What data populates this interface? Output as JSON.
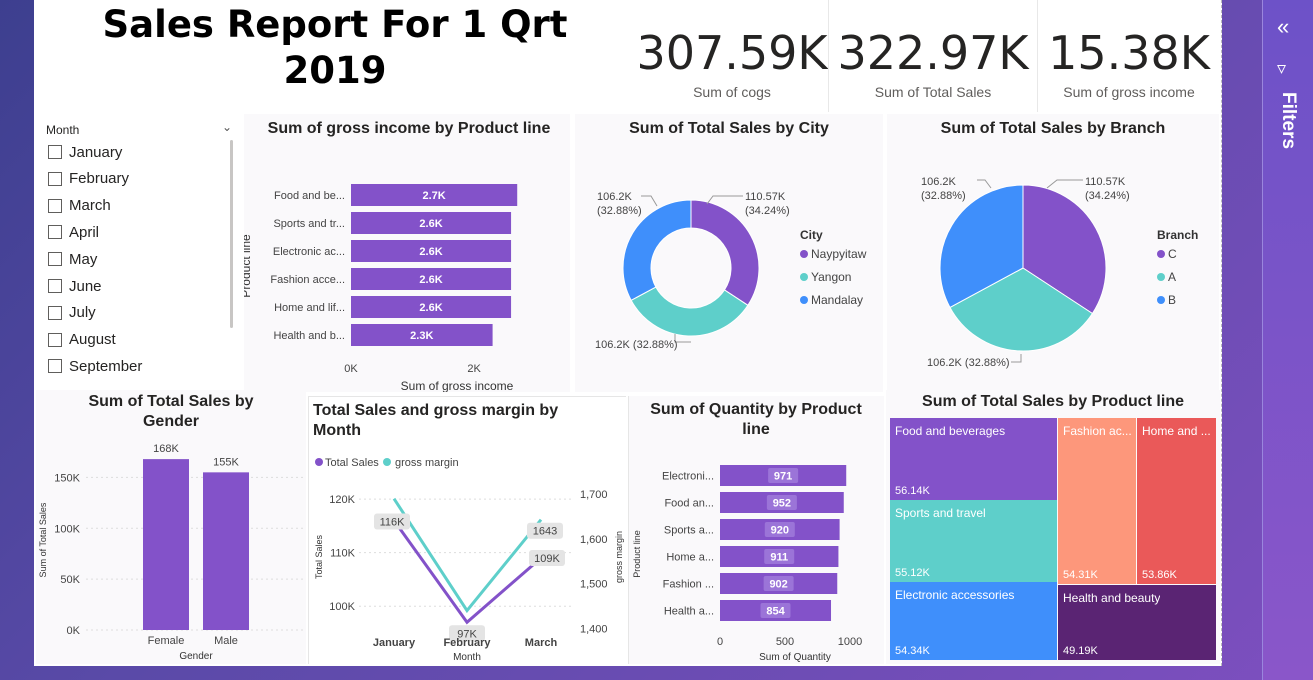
{
  "report": {
    "title_line1": "Sales Report For 1 Qrt",
    "title_line2": "2019"
  },
  "kpis": [
    {
      "value": "307.59K",
      "label": "Sum of cogs"
    },
    {
      "value": "322.97K",
      "label": "Sum of Total Sales"
    },
    {
      "value": "15.38K",
      "label": "Sum of gross income"
    }
  ],
  "slicer": {
    "header": "Month",
    "items": [
      "January",
      "February",
      "March",
      "April",
      "May",
      "June",
      "July",
      "August",
      "September"
    ]
  },
  "filters_pane": {
    "label": "Filters",
    "collapse_icon": "double-chevron-left-icon",
    "filter_icon": "funnel-icon"
  },
  "colors": {
    "purple": "#8352c9",
    "teal": "#5ecfca",
    "blue": "#3f8ffb",
    "salmon": "#fd977b",
    "red": "#ea5959",
    "dark_purple": "#5a2473"
  },
  "chart_data": [
    {
      "id": "gross_by_product",
      "type": "bar",
      "orientation": "horizontal",
      "title": "Sum of gross income by Product line",
      "categories": [
        "Food and be...",
        "Sports and tr...",
        "Electronic ac...",
        "Fashion acce...",
        "Home and lif...",
        "Health and b..."
      ],
      "values": [
        2.7,
        2.6,
        2.6,
        2.6,
        2.6,
        2.3
      ],
      "data_labels": [
        "2.7K",
        "2.6K",
        "2.6K",
        "2.6K",
        "2.6K",
        "2.3K"
      ],
      "xlabel": "Sum of gross income",
      "ylabel": "Product line",
      "x_ticks": [
        "0K",
        "2K"
      ],
      "xlim": [
        0,
        3.2
      ]
    },
    {
      "id": "sales_by_city",
      "type": "pie",
      "donut": true,
      "title": "Sum of Total Sales by City",
      "legend_title": "City",
      "slices": [
        {
          "name": "Naypyitaw",
          "value": 110.57,
          "label": "110.57K",
          "pct": "(34.24%)"
        },
        {
          "name": "Yangon",
          "value": 106.2,
          "label": "106.2K (32.88%)",
          "pct": ""
        },
        {
          "name": "Mandalay",
          "value": 106.2,
          "label": "106.2K",
          "pct": "(32.88%)"
        }
      ]
    },
    {
      "id": "sales_by_branch",
      "type": "pie",
      "donut": false,
      "title": "Sum of Total Sales by Branch",
      "legend_title": "Branch",
      "slices": [
        {
          "name": "C",
          "value": 110.57,
          "label": "110.57K",
          "pct": "(34.24%)"
        },
        {
          "name": "A",
          "value": 106.2,
          "label": "106.2K (32.88%)",
          "pct": ""
        },
        {
          "name": "B",
          "value": 106.2,
          "label": "106.2K",
          "pct": "(32.88%)"
        }
      ]
    },
    {
      "id": "sales_by_gender",
      "type": "bar",
      "orientation": "vertical",
      "title": "Sum of Total Sales by Gender",
      "categories": [
        "Female",
        "Male"
      ],
      "values": [
        168,
        155
      ],
      "data_labels": [
        "168K",
        "155K"
      ],
      "xlabel": "Gender",
      "ylabel": "Sum of Total Sales",
      "y_ticks": [
        "0K",
        "50K",
        "100K",
        "150K"
      ],
      "ylim": [
        0,
        175
      ]
    },
    {
      "id": "sales_margin_by_month",
      "type": "line",
      "title": "Total Sales and gross margin by Month",
      "categories": [
        "January",
        "February",
        "March"
      ],
      "series": [
        {
          "name": "Total Sales",
          "values": [
            116,
            97,
            109
          ],
          "labels": [
            "116K",
            "97K",
            "109K"
          ]
        },
        {
          "name": "gross margin",
          "values": [
            1690,
            1440,
            1643
          ],
          "labels": [
            "",
            "",
            "1643"
          ]
        }
      ],
      "xlabel": "Month",
      "ylabel": "Total Sales",
      "y2label": "gross margin",
      "y_ticks": [
        "100K",
        "110K",
        "120K"
      ],
      "y2_ticks": [
        "1,400",
        "1,500",
        "1,600",
        "1,700"
      ],
      "ylim": [
        95,
        123
      ],
      "y2lim": [
        1390,
        1725
      ]
    },
    {
      "id": "qty_by_product",
      "type": "bar",
      "orientation": "horizontal",
      "title": "Sum of Quantity by Product line",
      "categories": [
        "Electroni...",
        "Food an...",
        "Sports a...",
        "Home a...",
        "Fashion ...",
        "Health a..."
      ],
      "values": [
        971,
        952,
        920,
        911,
        902,
        854
      ],
      "data_labels": [
        "971",
        "952",
        "920",
        "911",
        "902",
        "854"
      ],
      "xlabel": "Sum of Quantity",
      "ylabel": "Product line",
      "x_ticks": [
        "0",
        "500",
        "1000"
      ],
      "xlim": [
        0,
        1000
      ]
    },
    {
      "id": "sales_treemap",
      "type": "treemap",
      "title": "Sum of Total Sales by Product line",
      "cells": [
        {
          "name": "Food and beverages",
          "value": 56.14,
          "label": "56.14K"
        },
        {
          "name": "Sports and travel",
          "value": 55.12,
          "label": "55.12K"
        },
        {
          "name": "Electronic accessories",
          "value": 54.34,
          "label": "54.34K"
        },
        {
          "name": "Fashion ac...",
          "value": 54.31,
          "label": "54.31K"
        },
        {
          "name": "Home and ...",
          "value": 53.86,
          "label": "53.86K"
        },
        {
          "name": "Health and beauty",
          "value": 49.19,
          "label": "49.19K"
        }
      ]
    }
  ]
}
